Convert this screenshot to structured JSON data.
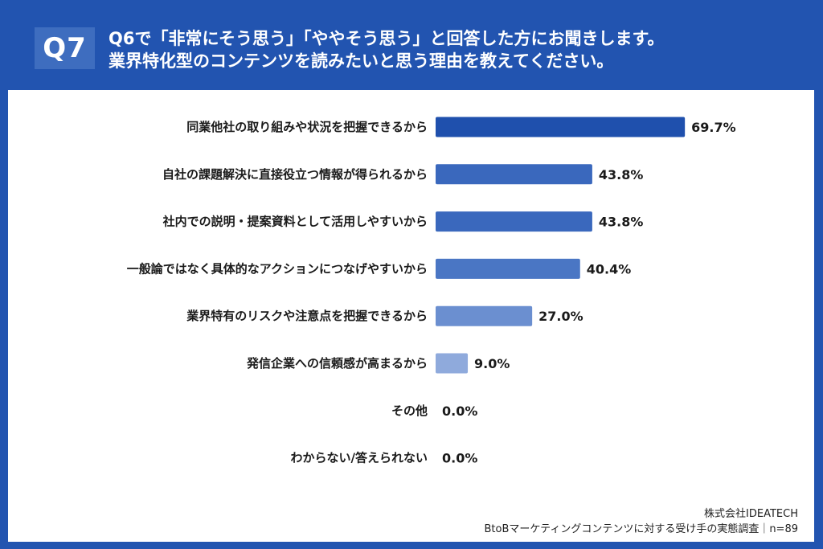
{
  "header": {
    "badge": "Q7",
    "title_line1": "Q6で「非常にそう思う」「ややそう思う」と回答した方にお聞きします。",
    "title_line2": "業界特化型のコンテンツを読みたいと思う理由を教えてください。"
  },
  "colors": {
    "frame": "#2254b0",
    "badge": "#3e6dbf",
    "panel": "#ffffff"
  },
  "chart_data": {
    "type": "bar",
    "orientation": "horizontal",
    "title": "Q6で「非常にそう思う」「ややそう思う」と回答した方にお聞きします。業界特化型のコンテンツを読みたいと思う理由を教えてください。",
    "xlabel": "",
    "ylabel": "",
    "unit": "%",
    "xlim": [
      0,
      100
    ],
    "grid": false,
    "legend": "none",
    "categories": [
      "同業他社の取り組みや状況を把握できるから",
      "自社の課題解決に直接役立つ情報が得られるから",
      "社内での説明・提案資料として活用しやすいから",
      "一般論ではなく具体的なアクションにつなげやすいから",
      "業界特有のリスクや注意点を把握できるから",
      "発信企業への信頼感が高まるから",
      "その他",
      "わからない/答えられない"
    ],
    "values": [
      69.7,
      43.8,
      43.8,
      40.4,
      27.0,
      9.0,
      0.0,
      0.0
    ],
    "value_labels": [
      "69.7%",
      "43.8%",
      "43.8%",
      "40.4%",
      "27.0%",
      "9.0%",
      "0.0%",
      "0.0%"
    ],
    "bar_colors": [
      "#1f50ad",
      "#3a68bd",
      "#3a68bd",
      "#4a76c4",
      "#6b8fd0",
      "#8faadc",
      "#a9bfe5",
      "#a9bfe5"
    ]
  },
  "footer": {
    "company": "株式会社IDEATECH",
    "survey": "BtoBマーケティングコンテンツに対する受け手の実態調査｜n=89"
  }
}
